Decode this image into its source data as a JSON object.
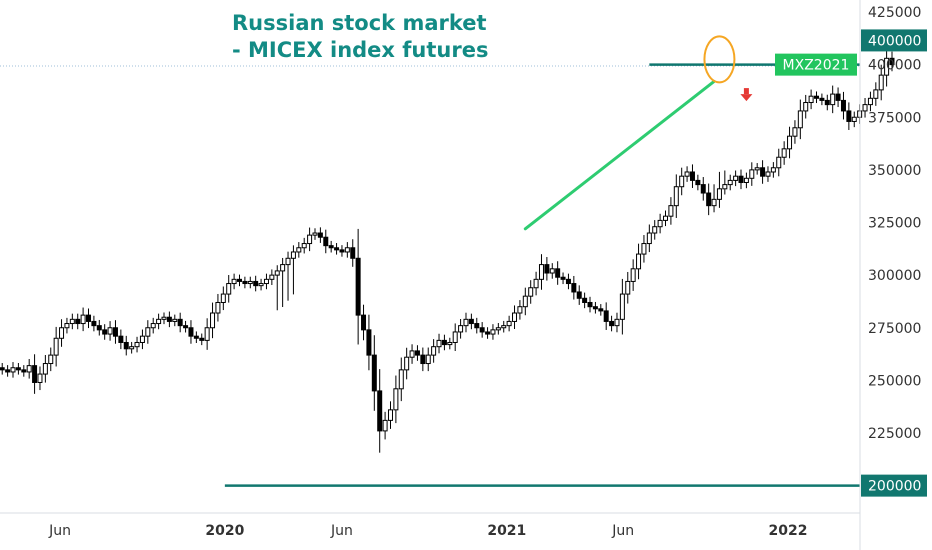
{
  "title": {
    "line1": "Russian stock market",
    "line2": "- MICEX index futures"
  },
  "colors": {
    "title": "#138b85",
    "level_line": "#11776f",
    "trend_line": "#2ecc71",
    "symbol_tag": "#22c55e",
    "circle": "#f5a623",
    "down_arrow": "#e53935",
    "candle": "#000000"
  },
  "symbol_tag": "MXZ2021",
  "annotations": {
    "circle": "highlight-circle",
    "arrow": "down-arrow-icon"
  },
  "chart_data": {
    "type": "candlestick",
    "title": "Russian stock market - MICEX index futures",
    "y_axis": {
      "position": "right",
      "ticks": [
        425000,
        400000,
        375000,
        350000,
        325000,
        300000,
        275000,
        250000,
        225000,
        200000
      ],
      "tick_labels": [
        "425000",
        "400000",
        "375000",
        "350000",
        "325000",
        "300000",
        "275000",
        "250000",
        "225000",
        "200000"
      ],
      "range": [
        190000,
        435000
      ]
    },
    "x_axis": {
      "tick_labels": [
        "Jun",
        "2020",
        "Jun",
        "2021",
        "Jun",
        "2022"
      ],
      "bold_labels": [
        "2020",
        "2021",
        "2022"
      ],
      "tick_dates": [
        "2019-06-01",
        "2020-01-01",
        "2020-06-01",
        "2021-01-01",
        "2021-06-01",
        "2022-01-01"
      ],
      "range": [
        "2019-01-14",
        "2022-03-07"
      ]
    },
    "horizontal_levels": [
      {
        "value": 400000,
        "label": "400000",
        "from": "2021-07-05",
        "style": "solid"
      },
      {
        "value": 200000,
        "label": "200000",
        "from": "2020-01-01",
        "style": "solid"
      }
    ],
    "trendline": {
      "start": [
        "2021-01-25",
        322000
      ],
      "end": [
        "2021-09-27",
        392000
      ]
    },
    "last_price": 400000,
    "grid": false,
    "weekly_close": [
      248000,
      251000,
      252000,
      251000,
      254000,
      253000,
      252000,
      255000,
      256000,
      255000,
      254000,
      256000,
      255000,
      254000,
      257000,
      249000,
      253000,
      258000,
      262000,
      270000,
      275000,
      277000,
      279000,
      277000,
      281000,
      278000,
      276000,
      274000,
      272000,
      275000,
      271000,
      268000,
      265000,
      266000,
      268000,
      271000,
      275000,
      277000,
      279000,
      280000,
      278000,
      279000,
      276000,
      275000,
      271000,
      270000,
      269000,
      275000,
      282000,
      287000,
      291000,
      296000,
      298000,
      297000,
      296000,
      297000,
      295000,
      296000,
      298000,
      300000,
      302000,
      305000,
      308000,
      311000,
      313000,
      315000,
      319000,
      320000,
      318000,
      314000,
      313000,
      312000,
      311000,
      313000,
      308000,
      281000,
      274000,
      262000,
      245000,
      226000,
      231000,
      236000,
      246000,
      255000,
      261000,
      264000,
      262000,
      258000,
      262000,
      266000,
      269000,
      267000,
      268000,
      273000,
      276000,
      279000,
      277000,
      275000,
      273000,
      272000,
      274000,
      275000,
      276000,
      278000,
      282000,
      285000,
      290000,
      294000,
      298000,
      305000,
      301000,
      303000,
      299000,
      298000,
      296000,
      292000,
      289000,
      287000,
      285000,
      284000,
      283000,
      278000,
      276000,
      279000,
      291000,
      297000,
      303000,
      310000,
      315000,
      320000,
      323000,
      326000,
      328000,
      333000,
      342000,
      347000,
      349000,
      345000,
      343000,
      339000,
      333000,
      336000,
      341000,
      343000,
      345000,
      347000,
      344000,
      346000,
      350000,
      351000,
      347000,
      349000,
      351000,
      356000,
      360000,
      366000,
      370000,
      378000,
      382000,
      385000,
      384000,
      383000,
      381000,
      386000,
      383000,
      378000,
      373000,
      375000,
      378000,
      381000,
      384000,
      388000,
      395000,
      403000,
      400000
    ]
  }
}
